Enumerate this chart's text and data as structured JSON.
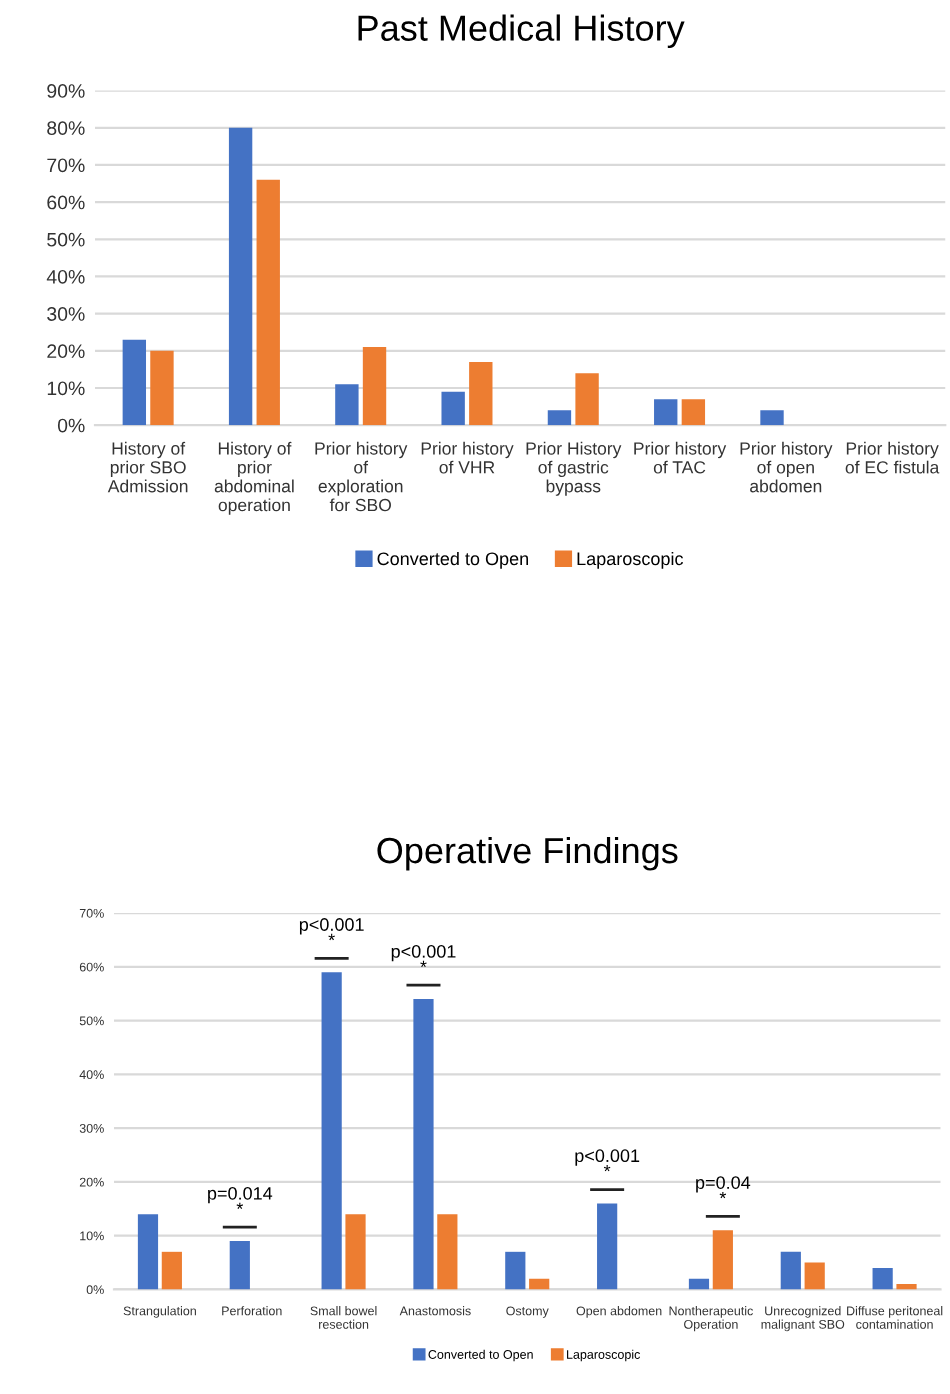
{
  "chart_data": [
    {
      "type": "bar",
      "title": "Past Medical History",
      "categories": [
        "History of\nprior SBO\nAdmission",
        "History of\nprior\nabdominal\noperation",
        "Prior history\nof\nexploration\nfor SBO",
        "Prior history\nof VHR",
        "Prior History\nof gastric\nbypass",
        "Prior history\nof TAC",
        "Prior history\nof open\nabdomen",
        "Prior history\nof EC fistula"
      ],
      "series": [
        {
          "name": "Converted to Open",
          "color": "#4472c4",
          "values": [
            23,
            80,
            11,
            9,
            4,
            7,
            4,
            0
          ]
        },
        {
          "name": "Laparoscopic",
          "color": "#ed7d31",
          "values": [
            20,
            66,
            21,
            17,
            14,
            7,
            0,
            0
          ]
        }
      ],
      "ylim": [
        0,
        90
      ],
      "yticks": [
        {
          "value": 0,
          "label": "0%"
        },
        {
          "value": 10,
          "label": "10%"
        },
        {
          "value": 20,
          "label": "20%"
        },
        {
          "value": 30,
          "label": "30%"
        },
        {
          "value": 40,
          "label": "40%"
        },
        {
          "value": 50,
          "label": "50%"
        },
        {
          "value": 60,
          "label": "60%"
        },
        {
          "value": 70,
          "label": "70%"
        },
        {
          "value": 80,
          "label": "80%"
        },
        {
          "value": 90,
          "label": "90%"
        }
      ],
      "grid": "y",
      "legend": "bottom"
    },
    {
      "type": "bar",
      "title": "Operative Findings",
      "categories": [
        "Strangulation",
        "Perforation",
        "Small bowel\nresection",
        "Anastomosis",
        "Ostomy",
        "Open abdomen",
        "Nontherapeutic\nOperation",
        "Unrecognized\nmalignant SBO",
        "Diffuse peritoneal\ncontamination"
      ],
      "series": [
        {
          "name": "Converted to Open",
          "color": "#4472c4",
          "values": [
            14,
            9,
            59,
            54,
            7,
            16,
            2,
            7,
            4
          ]
        },
        {
          "name": "Laparoscopic",
          "color": "#ed7d31",
          "values": [
            7,
            0,
            14,
            14,
            2,
            0,
            11,
            5,
            1
          ]
        }
      ],
      "ylim": [
        0,
        70
      ],
      "yticks": [
        {
          "value": 0,
          "label": "0%"
        },
        {
          "value": 10,
          "label": "10%"
        },
        {
          "value": 20,
          "label": "20%"
        },
        {
          "value": 30,
          "label": "30%"
        },
        {
          "value": 40,
          "label": "40%"
        },
        {
          "value": 50,
          "label": "50%"
        },
        {
          "value": 60,
          "label": "60%"
        },
        {
          "value": 70,
          "label": "70%"
        }
      ],
      "annotations": [
        {
          "text": "p=0.014\n*",
          "x": "Perforation",
          "y": 9
        },
        {
          "text": "p<0.001\n*",
          "x": "Small bowel\nresection",
          "y": 59
        },
        {
          "text": "p<0.001\n*",
          "x": "Anastomosis",
          "y": 54
        },
        {
          "text": "p<0.001\n*",
          "x": "Open abdomen",
          "y": 16
        },
        {
          "text": "p=0.04\n*",
          "x": "Nontherapeutic\nOperation",
          "y": 11
        }
      ],
      "grid": "y",
      "legend": "bottom"
    }
  ]
}
